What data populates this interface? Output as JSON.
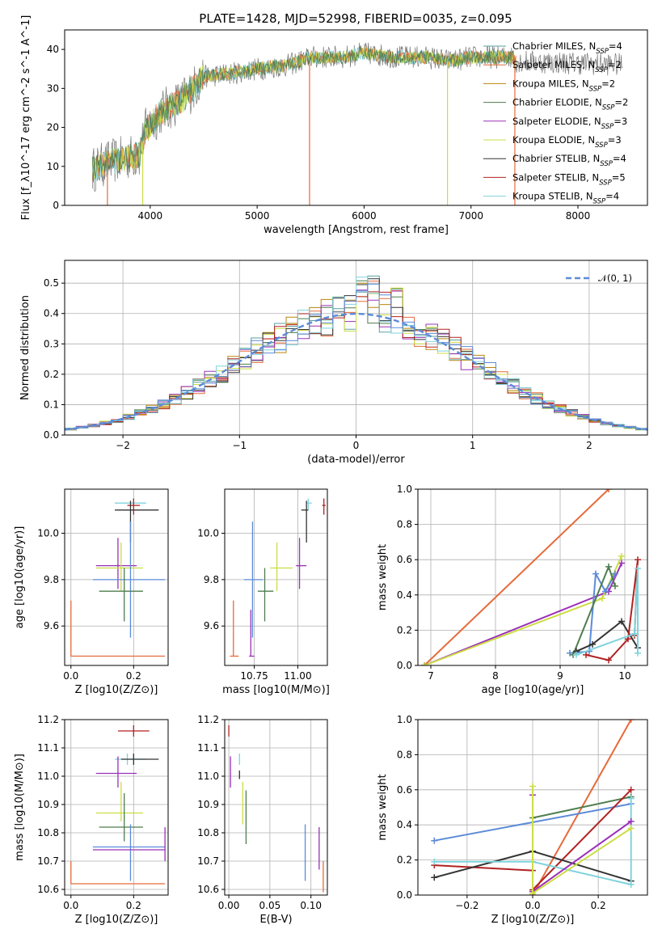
{
  "title": "PLATE=1428, MJD=52998, FIBERID=0035, z=0.095",
  "colors": {
    "Chabrier MILES": "#5aa0a0",
    "Salpeter MILES": "#e66a3a",
    "Kroupa MILES": "#b8860b",
    "Chabrier ELODIE": "#4e7d4e",
    "Salpeter ELODIE": "#9b30b8",
    "Kroupa ELODIE": "#ccdd44",
    "Chabrier STELIB": "#333333",
    "Salpeter STELIB": "#b22222",
    "Kroupa STELIB": "#7fd3dc",
    "normal": "#5b8bd9"
  },
  "chart_data": [
    {
      "type": "line",
      "id": "spectrum",
      "title": "PLATE=1428, MJD=52998, FIBERID=0035, z=0.095",
      "xlabel": "wavelength [Angstrom, rest frame]",
      "ylabel": "Flux [f_λ10^-17 erg cm^-2 s^-1 A^-1]",
      "xlim": [
        3200,
        8650
      ],
      "ylim": [
        0,
        45
      ],
      "xticks": [
        4000,
        5000,
        6000,
        7000,
        8000
      ],
      "yticks": [
        0,
        10,
        20,
        30,
        40
      ],
      "legend_position": "top-right",
      "series": [
        {
          "name": "Chabrier MILES, N_SSP=4"
        },
        {
          "name": "Salpeter MILES, N_SSP=2"
        },
        {
          "name": "Kroupa MILES, N_SSP=2"
        },
        {
          "name": "Chabrier ELODIE, N_SSP=2"
        },
        {
          "name": "Salpeter ELODIE, N_SSP=3"
        },
        {
          "name": "Kroupa ELODIE, N_SSP=3"
        },
        {
          "name": "Chabrier STELIB, N_SSP=4"
        },
        {
          "name": "Salpeter STELIB, N_SSP=5"
        },
        {
          "name": "Kroupa STELIB, N_SSP=4"
        }
      ],
      "continuum": {
        "x": [
          3450,
          3600,
          3900,
          3950,
          4100,
          4300,
          4500,
          4800,
          5000,
          5300,
          5500,
          5800,
          6000,
          6300,
          6600,
          6800,
          7000,
          7200,
          7400
        ],
        "y": [
          9,
          11,
          13,
          19,
          24,
          27,
          33,
          34,
          35,
          36,
          38,
          38,
          39,
          38,
          38,
          37,
          38,
          38,
          38
        ]
      }
    },
    {
      "type": "step",
      "id": "residuals",
      "xlabel": "(data-model)/error",
      "ylabel": "Normed distribution",
      "xlim": [
        -2.5,
        2.5
      ],
      "ylim": [
        0,
        0.575
      ],
      "xticks": [
        -2,
        -1,
        0,
        1,
        2
      ],
      "yticks": [
        0.0,
        0.1,
        0.2,
        0.3,
        0.4,
        0.5
      ],
      "legend": "𝒩(0, 1)",
      "legend_position": "top-right",
      "bins": [
        -2.5,
        -2.4,
        -2.3,
        -2.2,
        -2.1,
        -2.0,
        -1.9,
        -1.8,
        -1.7,
        -1.6,
        -1.5,
        -1.4,
        -1.3,
        -1.2,
        -1.1,
        -1.0,
        -0.9,
        -0.8,
        -0.7,
        -0.6,
        -0.5,
        -0.4,
        -0.3,
        -0.2,
        -0.1,
        0.0,
        0.1,
        0.2,
        0.3,
        0.4,
        0.5,
        0.6,
        0.7,
        0.8,
        0.9,
        1.0,
        1.1,
        1.2,
        1.3,
        1.4,
        1.5,
        1.6,
        1.7,
        1.8,
        1.9,
        2.0,
        2.1,
        2.2,
        2.3,
        2.4,
        2.5
      ]
    },
    {
      "type": "scatter",
      "id": "age-vs-Z",
      "xlabel": "Z [log10(Z/Z⊙)]",
      "ylabel": "age [log10(age/yr)]",
      "xlim": [
        -0.02,
        0.31
      ],
      "ylim": [
        9.43,
        10.19
      ],
      "xticks": [
        0.0,
        0.2
      ],
      "yticks": [
        9.6,
        9.8,
        10.0
      ],
      "points": [
        {
          "series": "Salpeter MILES",
          "x": 0.0,
          "y": 9.47,
          "xerr": [
            0.0,
            0.3
          ],
          "yerr": [
            9.47,
            9.71
          ]
        },
        {
          "series": "Kroupa STELIB",
          "x": 0.2,
          "y": 10.13,
          "xerr": [
            0.14,
            0.24
          ],
          "yerr": [
            10.1,
            10.15
          ]
        },
        {
          "series": "Salpeter STELIB",
          "x": 0.2,
          "y": 10.12,
          "xerr": [
            0.18,
            0.22
          ],
          "yerr": [
            10.08,
            10.15
          ]
        },
        {
          "series": "Chabrier STELIB",
          "x": 0.19,
          "y": 10.1,
          "xerr": [
            0.14,
            0.28
          ],
          "yerr": [
            9.96,
            10.14
          ]
        },
        {
          "series": "Salpeter ELODIE",
          "x": 0.15,
          "y": 9.86,
          "xerr": [
            0.08,
            0.21
          ],
          "yerr": [
            9.76,
            9.98
          ]
        },
        {
          "series": "Kroupa ELODIE",
          "x": 0.16,
          "y": 9.85,
          "xerr": [
            0.08,
            0.23
          ],
          "yerr": [
            9.75,
            9.96
          ]
        },
        {
          "series": "normal",
          "x": 0.19,
          "y": 9.8,
          "xerr": [
            0.07,
            0.3
          ],
          "yerr": [
            9.55,
            10.05
          ]
        },
        {
          "series": "Chabrier ELODIE",
          "x": 0.17,
          "y": 9.75,
          "xerr": [
            0.09,
            0.23
          ],
          "yerr": [
            9.62,
            9.85
          ]
        }
      ]
    },
    {
      "type": "scatter",
      "id": "age-vs-mass",
      "xlabel": "mass [log10(M/M⊙)]",
      "xlim": [
        10.58,
        11.17
      ],
      "ylim": [
        9.43,
        10.19
      ],
      "xticks": [
        10.75,
        11.0
      ],
      "yticks": [
        9.6,
        9.8,
        10.0
      ],
      "points": [
        {
          "series": "Salpeter MILES",
          "x": 10.63,
          "y": 9.47,
          "xerr": [
            10.61,
            10.66
          ],
          "yerr": [
            9.47,
            9.71
          ]
        },
        {
          "series": "Kroupa STELIB",
          "x": 11.06,
          "y": 10.13,
          "xerr": [
            11.05,
            11.08
          ],
          "yerr": [
            10.1,
            10.15
          ]
        },
        {
          "series": "Salpeter STELIB",
          "x": 11.15,
          "y": 10.12,
          "xerr": [
            11.14,
            11.16
          ],
          "yerr": [
            10.08,
            10.15
          ]
        },
        {
          "series": "Chabrier STELIB",
          "x": 11.05,
          "y": 10.1,
          "xerr": [
            11.02,
            11.06
          ],
          "yerr": [
            9.96,
            10.14
          ]
        },
        {
          "series": "Salpeter ELODIE",
          "x": 11.01,
          "y": 9.86,
          "xerr": [
            10.99,
            11.05
          ],
          "yerr": [
            9.76,
            9.98
          ]
        },
        {
          "series": "Kroupa ELODIE",
          "x": 10.88,
          "y": 9.85,
          "xerr": [
            10.84,
            10.97
          ],
          "yerr": [
            9.75,
            9.96
          ]
        },
        {
          "series": "normal",
          "x": 10.74,
          "y": 9.8,
          "xerr": [
            10.69,
            10.8
          ],
          "yerr": [
            9.55,
            10.05
          ]
        },
        {
          "series": "Chabrier ELODIE",
          "x": 10.81,
          "y": 9.75,
          "xerr": [
            10.77,
            10.86
          ],
          "yerr": [
            9.62,
            9.85
          ]
        },
        {
          "series": "Salpeter ELODIE",
          "x": 10.73,
          "y": 9.47,
          "xerr": [
            10.72,
            10.75
          ],
          "yerr": [
            9.47,
            9.67
          ]
        }
      ]
    },
    {
      "type": "line",
      "id": "mass-weight-vs-age",
      "xlabel": "age [log10(age/yr)]",
      "ylabel": "mass weight",
      "xlim": [
        6.8,
        10.35
      ],
      "ylim": [
        0,
        1.0
      ],
      "xticks": [
        7,
        8,
        9,
        10
      ],
      "yticks": [
        0.0,
        0.2,
        0.4,
        0.6,
        0.8,
        1.0
      ],
      "series": [
        {
          "color": "Salpeter MILES",
          "x": [
            6.9,
            9.75
          ],
          "y": [
            0.0,
            1.0
          ]
        },
        {
          "color": "Salpeter ELODIE",
          "x": [
            6.9,
            9.75,
            9.95
          ],
          "y": [
            0.0,
            0.42,
            0.58
          ]
        },
        {
          "color": "Kroupa ELODIE",
          "x": [
            6.9,
            9.65,
            9.95
          ],
          "y": [
            0.0,
            0.38,
            0.62
          ]
        },
        {
          "color": "normal",
          "x": [
            9.15,
            9.45,
            9.55,
            9.7,
            9.85
          ],
          "y": [
            0.07,
            0.08,
            0.52,
            0.42,
            0.52
          ]
        },
        {
          "color": "Chabrier ELODIE",
          "x": [
            9.2,
            9.75,
            9.85
          ],
          "y": [
            0.06,
            0.56,
            0.45
          ]
        },
        {
          "color": "Chabrier STELIB",
          "x": [
            9.25,
            9.5,
            9.95,
            10.2
          ],
          "y": [
            0.08,
            0.12,
            0.25,
            0.1
          ]
        },
        {
          "color": "Salpeter STELIB",
          "x": [
            9.4,
            9.75,
            10.05,
            10.2,
            10.15
          ],
          "y": [
            0.06,
            0.03,
            0.15,
            0.6,
            0.17
          ]
        },
        {
          "color": "Kroupa STELIB",
          "x": [
            9.25,
            10.15,
            10.2,
            10.2
          ],
          "y": [
            0.06,
            0.18,
            0.55,
            0.07
          ]
        }
      ]
    },
    {
      "type": "scatter",
      "id": "mass-vs-Z",
      "xlabel": "Z [log10(Z/Z⊙)]",
      "ylabel": "mass [log10(M/M⊙)]",
      "xlim": [
        -0.02,
        0.31
      ],
      "ylim": [
        10.58,
        11.2
      ],
      "xticks": [
        0.0,
        0.2
      ],
      "yticks": [
        10.6,
        10.7,
        10.8,
        10.9,
        11.0,
        11.1,
        11.2
      ],
      "points": [
        {
          "series": "Salpeter MILES",
          "x": 0.0,
          "y": 10.62,
          "xerr": [
            0.0,
            0.3
          ],
          "yerr": [
            10.62,
            10.7
          ]
        },
        {
          "series": "Salpeter STELIB",
          "x": 0.2,
          "y": 11.16,
          "xerr": [
            0.15,
            0.25
          ],
          "yerr": [
            11.14,
            11.18
          ]
        },
        {
          "series": "Kroupa STELIB",
          "x": 0.18,
          "y": 11.06,
          "xerr": [
            0.14,
            0.24
          ],
          "yerr": [
            11.04,
            11.08
          ]
        },
        {
          "series": "Chabrier STELIB",
          "x": 0.2,
          "y": 11.06,
          "xerr": [
            0.16,
            0.28
          ],
          "yerr": [
            11.04,
            11.08
          ]
        },
        {
          "series": "Salpeter ELODIE",
          "x": 0.15,
          "y": 11.01,
          "xerr": [
            0.08,
            0.21
          ],
          "yerr": [
            10.96,
            11.07
          ]
        },
        {
          "series": "Kroupa ELODIE",
          "x": 0.16,
          "y": 10.87,
          "xerr": [
            0.08,
            0.23
          ],
          "yerr": [
            10.84,
            10.98
          ]
        },
        {
          "series": "Chabrier ELODIE",
          "x": 0.17,
          "y": 10.82,
          "xerr": [
            0.09,
            0.23
          ],
          "yerr": [
            10.77,
            10.94
          ]
        },
        {
          "series": "normal",
          "x": 0.19,
          "y": 10.75,
          "xerr": [
            0.07,
            0.3
          ],
          "yerr": [
            10.63,
            10.83
          ]
        },
        {
          "series": "Salpeter ELODIE",
          "x": 0.3,
          "y": 10.74,
          "xerr": [
            0.07,
            0.3
          ],
          "yerr": [
            10.7,
            10.82
          ]
        }
      ]
    },
    {
      "type": "scatter",
      "id": "mass-vs-ebv",
      "xlabel": "E(B-V)",
      "xlim": [
        -0.005,
        0.12
      ],
      "ylim": [
        10.58,
        11.2
      ],
      "xticks": [
        0.0,
        0.05,
        0.1
      ],
      "yticks": [
        10.6,
        10.7,
        10.8,
        10.9,
        11.0,
        11.1,
        11.2
      ],
      "points": [
        {
          "series": "Salpeter STELIB",
          "x": 0.0,
          "y": 11.16,
          "yerr": [
            11.14,
            11.18
          ]
        },
        {
          "series": "Salpeter ELODIE",
          "x": 0.002,
          "y": 11.01,
          "yerr": [
            10.96,
            11.07
          ]
        },
        {
          "series": "Kroupa STELIB",
          "x": 0.013,
          "y": 11.06,
          "yerr": [
            11.04,
            11.08
          ]
        },
        {
          "series": "Chabrier STELIB",
          "x": 0.013,
          "y": 11.0,
          "yerr": [
            10.99,
            11.02
          ]
        },
        {
          "series": "Kroupa ELODIE",
          "x": 0.017,
          "y": 10.87,
          "yerr": [
            10.83,
            10.98
          ]
        },
        {
          "series": "Chabrier ELODIE",
          "x": 0.021,
          "y": 10.82,
          "yerr": [
            10.76,
            10.95
          ]
        },
        {
          "series": "normal",
          "x": 0.093,
          "y": 10.73,
          "yerr": [
            10.63,
            10.83
          ]
        },
        {
          "series": "Salpeter ELODIE",
          "x": 0.11,
          "y": 10.75,
          "yerr": [
            10.67,
            10.82
          ]
        },
        {
          "series": "Salpeter MILES",
          "x": 0.115,
          "y": 10.62,
          "yerr": [
            10.59,
            10.7
          ]
        }
      ]
    },
    {
      "type": "line",
      "id": "mass-weight-vs-Z",
      "xlabel": "Z [log10(Z/Z⊙)]",
      "ylabel": "mass weight",
      "xlim": [
        -0.35,
        0.35
      ],
      "ylim": [
        0,
        1.0
      ],
      "xticks": [
        -0.2,
        0.0,
        0.2
      ],
      "yticks": [
        0.0,
        0.2,
        0.4,
        0.6,
        0.8,
        1.0
      ],
      "series": [
        {
          "color": "Salpeter MILES",
          "x": [
            0.0,
            0.3
          ],
          "y": [
            0.0,
            1.0
          ]
        },
        {
          "color": "normal",
          "x": [
            -0.3,
            0.3
          ],
          "y": [
            0.31,
            0.52
          ]
        },
        {
          "color": "Chabrier ELODIE",
          "x": [
            0.0,
            0.3
          ],
          "y": [
            0.44,
            0.56
          ]
        },
        {
          "color": "Salpeter STELIB",
          "x": [
            -0.3,
            0.0,
            0.0,
            0.3
          ],
          "y": [
            0.17,
            0.14,
            0.03,
            0.6
          ]
        },
        {
          "color": "Chabrier STELIB",
          "x": [
            -0.3,
            0.0,
            0.3
          ],
          "y": [
            0.1,
            0.25,
            0.08
          ]
        },
        {
          "color": "Kroupa STELIB",
          "x": [
            -0.3,
            0.0,
            0.3,
            0.3
          ],
          "y": [
            0.19,
            0.19,
            0.06,
            0.55
          ]
        },
        {
          "color": "Salpeter ELODIE",
          "x": [
            0.0,
            0.0,
            0.3
          ],
          "y": [
            0.57,
            0.02,
            0.42
          ]
        },
        {
          "color": "Kroupa ELODIE",
          "x": [
            0.0,
            0.0,
            0.3
          ],
          "y": [
            0.62,
            0.01,
            0.38
          ]
        }
      ]
    }
  ]
}
